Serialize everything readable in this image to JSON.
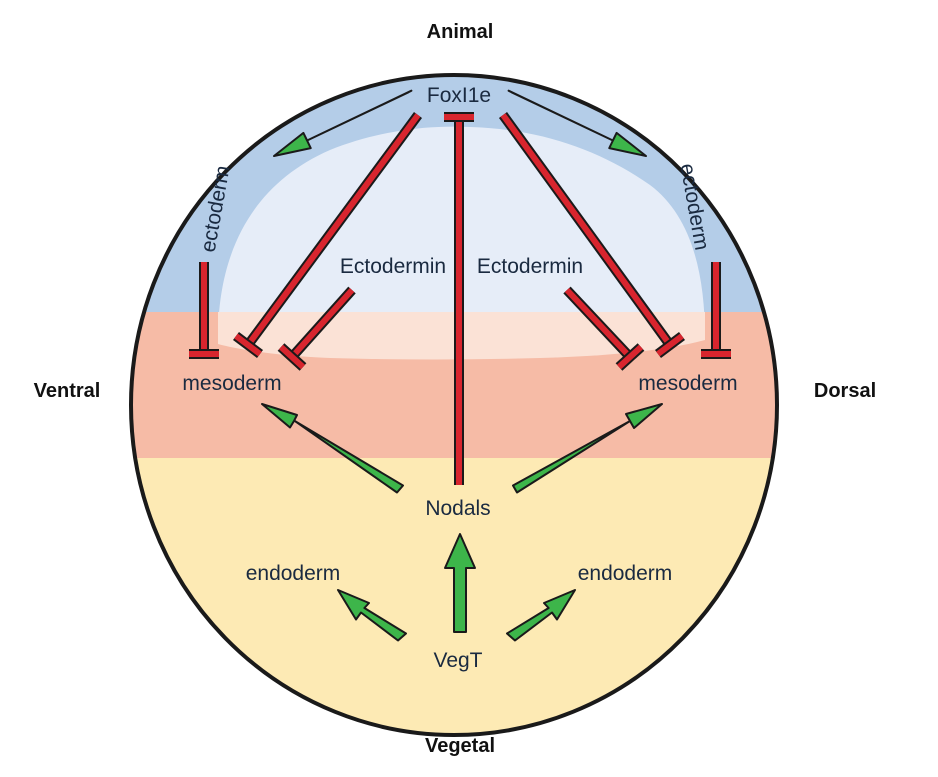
{
  "orientation": {
    "top": "Animal",
    "bottom": "Vegetal",
    "left": "Ventral",
    "right": "Dorsal"
  },
  "nodes": {
    "foxi1e": "FoxI1e",
    "ectoderm_left": "ectoderm",
    "ectoderm_right": "ectoderm",
    "ectodermin_left": "Ectodermin",
    "ectodermin_right": "Ectodermin",
    "mesoderm_left": "mesoderm",
    "mesoderm_right": "mesoderm",
    "nodals": "Nodals",
    "endoderm_left": "endoderm",
    "endoderm_right": "endoderm",
    "vegt": "VegT"
  },
  "colors": {
    "activation": "#3db54a",
    "inhibition": "#d8252e",
    "outline": "#1a1a1a",
    "animal_zone": "#b4cde8",
    "animal_inner": "#e6edf8",
    "marginal_zone": "#f6bba6",
    "vegetal_zone": "#fdeab4"
  }
}
